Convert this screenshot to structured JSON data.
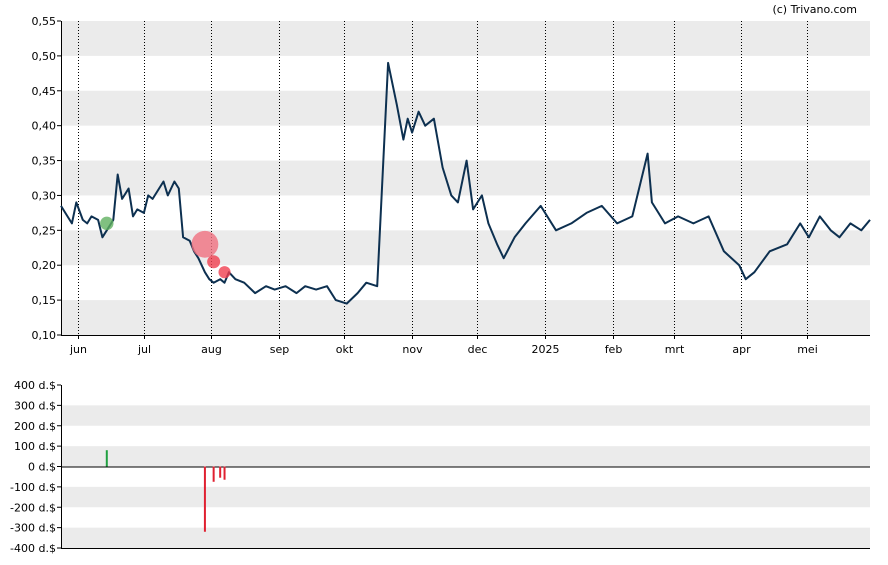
{
  "credit": "(c) Trivano.com",
  "chart_data": [
    {
      "type": "line",
      "ylim": [
        0.1,
        0.55
      ],
      "yticks": [
        "0,10",
        "0,15",
        "0,20",
        "0,25",
        "0,30",
        "0,35",
        "0,40",
        "0,45",
        "0,50",
        "0,55"
      ],
      "xticks": [
        "jun",
        "jul",
        "aug",
        "sep",
        "okt",
        "nov",
        "dec",
        "2025",
        "feb",
        "mrt",
        "apr",
        "mei"
      ],
      "grid": true,
      "band_color": "#ebebeb",
      "line_color": "#0d3050",
      "series": [
        {
          "x": [
            "2024-05-24",
            "2024-05-27",
            "2024-05-29",
            "2024-05-31",
            "2024-06-03",
            "2024-06-05",
            "2024-06-07",
            "2024-06-10",
            "2024-06-12",
            "2024-06-14",
            "2024-06-17",
            "2024-06-19",
            "2024-06-21",
            "2024-06-24",
            "2024-06-26",
            "2024-06-28",
            "2024-07-01",
            "2024-07-03",
            "2024-07-05",
            "2024-07-08",
            "2024-07-10",
            "2024-07-12",
            "2024-07-15",
            "2024-07-17",
            "2024-07-19",
            "2024-07-22",
            "2024-07-24",
            "2024-07-26",
            "2024-07-29",
            "2024-07-31",
            "2024-08-02",
            "2024-08-05",
            "2024-08-07",
            "2024-08-09",
            "2024-08-12",
            "2024-08-16",
            "2024-08-21",
            "2024-08-26",
            "2024-08-30",
            "2024-09-04",
            "2024-09-09",
            "2024-09-13",
            "2024-09-18",
            "2024-09-23",
            "2024-09-27",
            "2024-10-02",
            "2024-10-07",
            "2024-10-11",
            "2024-10-16",
            "2024-10-21",
            "2024-10-25",
            "2024-10-28",
            "2024-10-30",
            "2024-11-01",
            "2024-11-04",
            "2024-11-07",
            "2024-11-11",
            "2024-11-15",
            "2024-11-19",
            "2024-11-22",
            "2024-11-26",
            "2024-11-29",
            "2024-12-03",
            "2024-12-06",
            "2024-12-10",
            "2024-12-13",
            "2024-12-18",
            "2024-12-23",
            "2024-12-30",
            "2025-01-06",
            "2025-01-13",
            "2025-01-20",
            "2025-01-27",
            "2025-02-03",
            "2025-02-10",
            "2025-02-17",
            "2025-02-19",
            "2025-02-21",
            "2025-02-25",
            "2025-03-03",
            "2025-03-10",
            "2025-03-17",
            "2025-03-24",
            "2025-03-31",
            "2025-04-03",
            "2025-04-07",
            "2025-04-14",
            "2025-04-22",
            "2025-04-28",
            "2025-05-02",
            "2025-05-07",
            "2025-05-12",
            "2025-05-16",
            "2025-05-21",
            "2025-05-26",
            "2025-05-30"
          ],
          "y": [
            0.285,
            0.27,
            0.26,
            0.29,
            0.265,
            0.26,
            0.27,
            0.265,
            0.24,
            0.25,
            0.265,
            0.33,
            0.295,
            0.31,
            0.27,
            0.28,
            0.275,
            0.3,
            0.295,
            0.31,
            0.32,
            0.3,
            0.32,
            0.31,
            0.24,
            0.235,
            0.22,
            0.21,
            0.19,
            0.18,
            0.175,
            0.18,
            0.175,
            0.19,
            0.18,
            0.175,
            0.16,
            0.17,
            0.165,
            0.17,
            0.16,
            0.17,
            0.165,
            0.17,
            0.15,
            0.145,
            0.16,
            0.175,
            0.17,
            0.49,
            0.43,
            0.38,
            0.41,
            0.39,
            0.42,
            0.4,
            0.41,
            0.34,
            0.3,
            0.29,
            0.35,
            0.28,
            0.3,
            0.26,
            0.23,
            0.21,
            0.24,
            0.26,
            0.285,
            0.25,
            0.26,
            0.275,
            0.285,
            0.26,
            0.27,
            0.36,
            0.29,
            0.28,
            0.26,
            0.27,
            0.26,
            0.27,
            0.22,
            0.2,
            0.18,
            0.19,
            0.22,
            0.23,
            0.26,
            0.24,
            0.27,
            0.25,
            0.24,
            0.26,
            0.25,
            0.265
          ]
        }
      ],
      "markers": [
        {
          "x": "2024-06-14",
          "y": 0.26,
          "type": "buy",
          "color": "#60b060"
        },
        {
          "x": "2024-07-29",
          "y": 0.23,
          "type": "sell",
          "color": "#f07080"
        },
        {
          "x": "2024-08-02",
          "y": 0.205,
          "type": "sell",
          "color": "#f04050"
        },
        {
          "x": "2024-08-07",
          "y": 0.19,
          "type": "sell",
          "color": "#f04050"
        }
      ]
    },
    {
      "type": "bar",
      "ylim": [
        -400,
        400
      ],
      "yticks": [
        "-400 d.$",
        "-300 d.$",
        "-200 d.$",
        "-100 d.$",
        "0 d.$",
        "100 d.$",
        "200 d.$",
        "300 d.$",
        "400 d.$"
      ],
      "series": [
        {
          "x": [
            "2024-06-14",
            "2024-07-29",
            "2024-08-02",
            "2024-08-05",
            "2024-08-07"
          ],
          "y": [
            80,
            -320,
            -75,
            -55,
            -65
          ],
          "colors": [
            "#20a040",
            "#e02030",
            "#e02030",
            "#e02030",
            "#e02030"
          ]
        }
      ]
    }
  ]
}
